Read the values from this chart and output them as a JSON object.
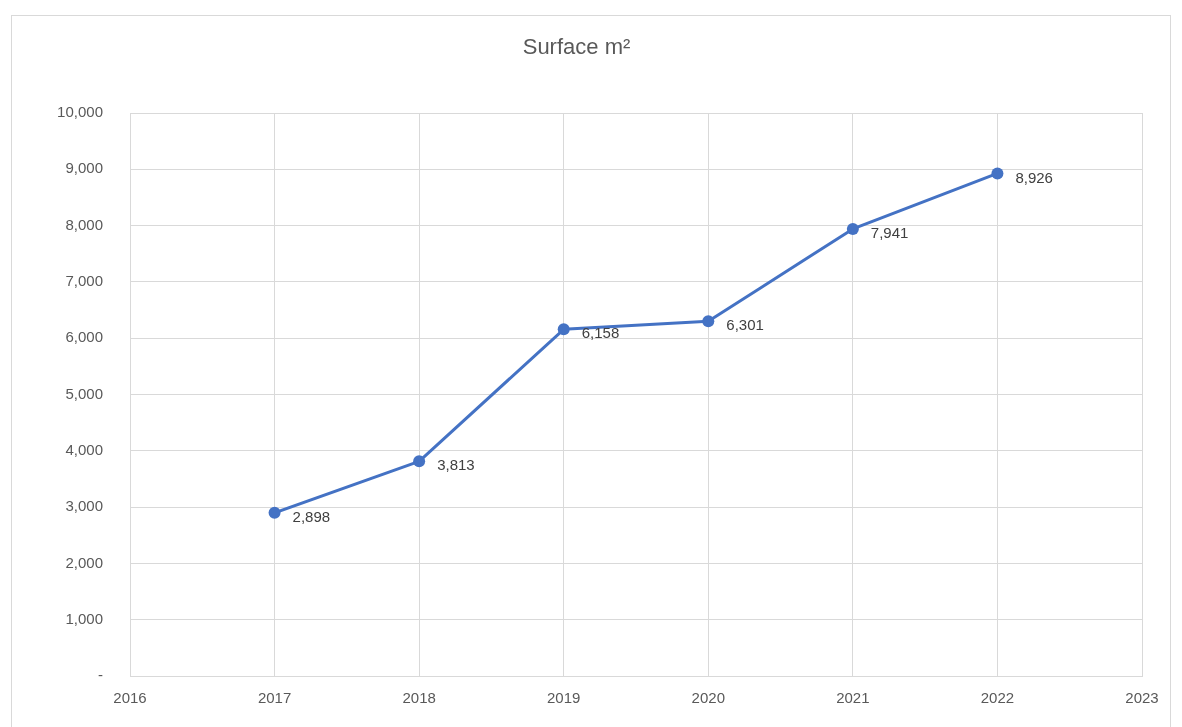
{
  "chart_data": {
    "type": "line",
    "title": "Surface m²",
    "x": [
      2017,
      2018,
      2019,
      2020,
      2021,
      2022
    ],
    "series": [
      {
        "color": "#4472c4",
        "values": [
          2898,
          3813,
          6158,
          6301,
          7941,
          8926
        ],
        "value_labels": [
          "2,898",
          "3,813",
          "6,158",
          "6,301",
          "7,941",
          "8,926"
        ]
      }
    ],
    "xlim": [
      2016,
      2023
    ],
    "xticks": [
      2016,
      2017,
      2018,
      2019,
      2020,
      2021,
      2022,
      2023
    ],
    "ylim": [
      0,
      10000
    ],
    "yticks": [
      {
        "value": 0,
        "label": "-"
      },
      {
        "value": 1000,
        "label": "1,000"
      },
      {
        "value": 2000,
        "label": "2,000"
      },
      {
        "value": 3000,
        "label": "3,000"
      },
      {
        "value": 4000,
        "label": "4,000"
      },
      {
        "value": 5000,
        "label": "5,000"
      },
      {
        "value": 6000,
        "label": "6,000"
      },
      {
        "value": 7000,
        "label": "7,000"
      },
      {
        "value": 8000,
        "label": "8,000"
      },
      {
        "value": 9000,
        "label": "9,000"
      },
      {
        "value": 10000,
        "label": "10,000"
      }
    ],
    "grid": true,
    "legend": false,
    "marker": "circle",
    "line_style": "solid"
  }
}
